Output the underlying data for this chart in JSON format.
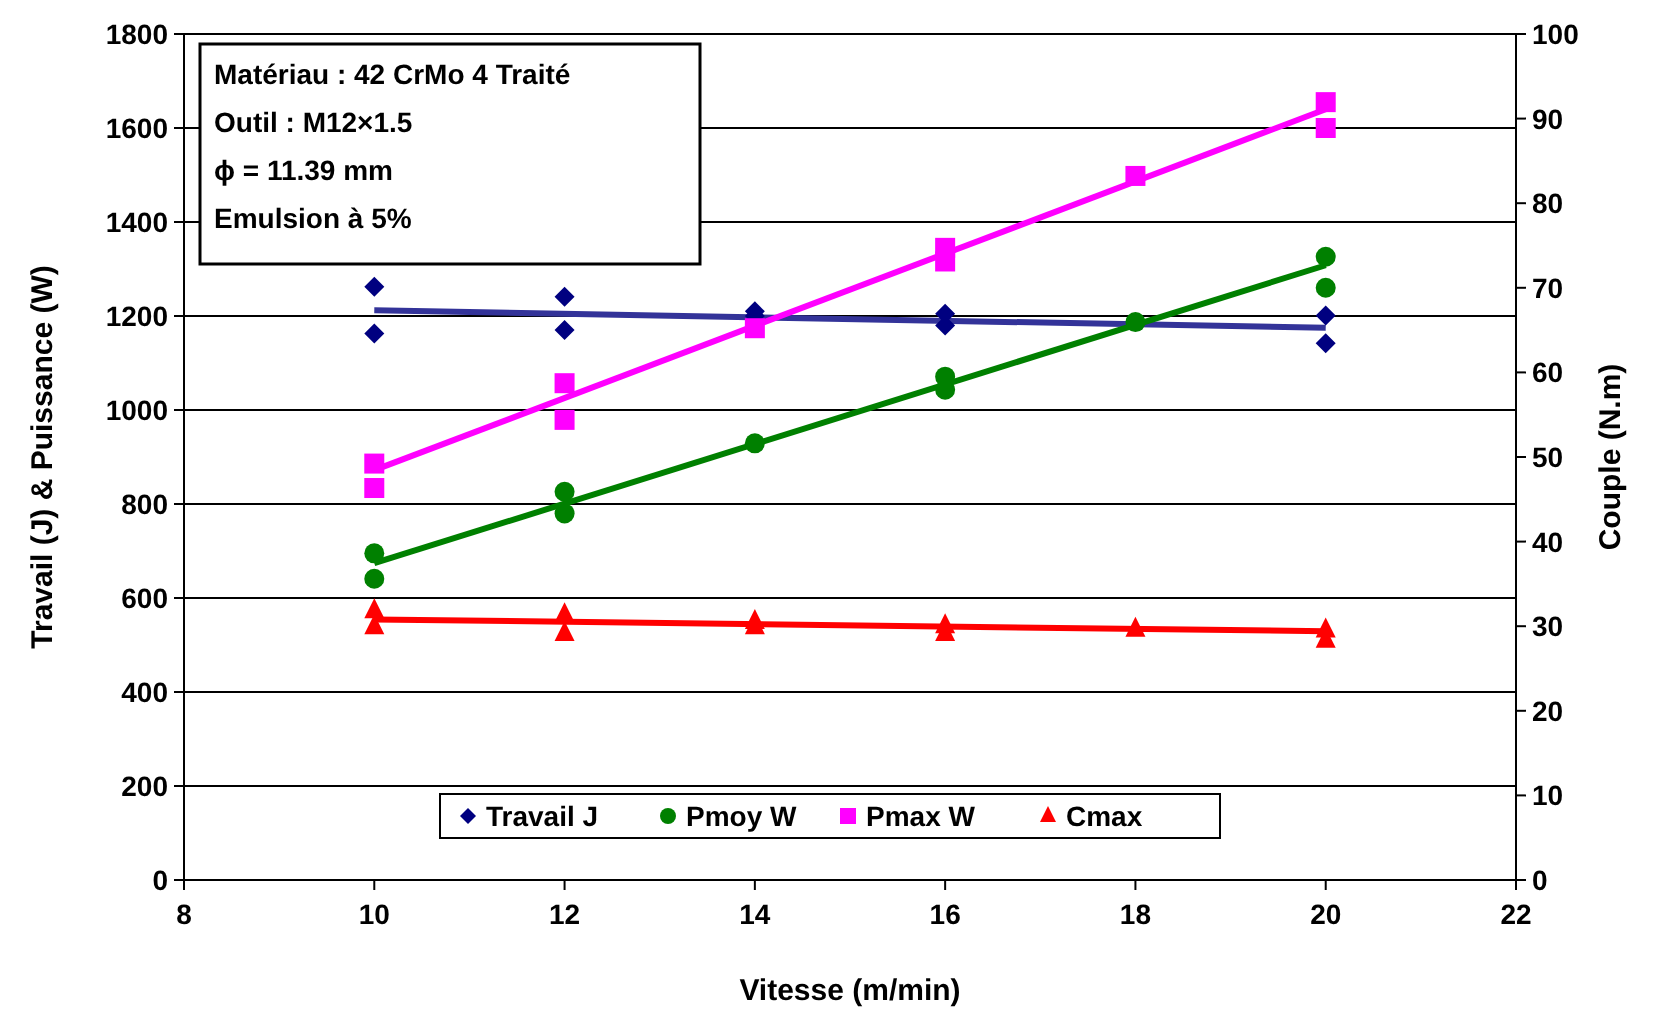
{
  "chart_data": {
    "type": "scatter",
    "xlabel": "Vitesse (m/min)",
    "ylabel": "Travail (J) & Puissance (W)",
    "y2label": "Couple (N.m)",
    "annotations": [
      "Matériau : 42 CrMo 4 Traité",
      "Outil : M12×1.5",
      "ϕ = 11.39 mm",
      "Emulsion à 5%"
    ],
    "xlim": [
      8,
      22
    ],
    "xticks": [
      8,
      10,
      12,
      14,
      16,
      18,
      20,
      22
    ],
    "ylim": [
      0,
      1800
    ],
    "yticks": [
      0,
      200,
      400,
      600,
      800,
      1000,
      1200,
      1400,
      1600,
      1800
    ],
    "y2lim": [
      0,
      100
    ],
    "y2ticks": [
      0,
      10,
      20,
      30,
      40,
      50,
      60,
      70,
      80,
      90,
      100
    ],
    "grid": "y",
    "legend": "bottom",
    "series": [
      {
        "name": "Travail J",
        "marker": "diamond",
        "color": "#000080",
        "x": [
          10,
          10,
          12,
          12,
          14,
          14,
          16,
          16,
          20,
          20
        ],
        "values": [
          1262,
          1163,
          1241,
          1170,
          1210,
          1200,
          1205,
          1180,
          1201,
          1142
        ]
      },
      {
        "name": "Pmoy W",
        "marker": "circle",
        "color": "#008000",
        "x": [
          10,
          10,
          12,
          12,
          14,
          16,
          16,
          18,
          20,
          20
        ],
        "values": [
          695,
          641,
          826,
          780,
          929,
          1071,
          1043,
          1187,
          1326,
          1260
        ]
      },
      {
        "name": "Pmax W",
        "marker": "square",
        "color": "#ff00ff",
        "x": [
          10,
          10,
          12,
          12,
          14,
          16,
          16,
          18,
          20,
          20
        ],
        "values": [
          886,
          834,
          1057,
          979,
          1174,
          1345,
          1316,
          1498,
          1655,
          1600
        ]
      },
      {
        "name": "Cmax",
        "marker": "triangle",
        "color": "#ff0000",
        "axis": "y2",
        "x": [
          10,
          10,
          12,
          12,
          14,
          14,
          16,
          16,
          18,
          20,
          20
        ],
        "values": [
          31.9,
          30.0,
          31.4,
          29.2,
          30.6,
          30.0,
          30.1,
          29.2,
          29.7,
          29.6,
          28.4
        ]
      },
      {
        "type": "line",
        "marker": "none",
        "color": "#333399",
        "x": [
          10,
          20
        ],
        "values": [
          1212,
          1175
        ]
      },
      {
        "type": "line",
        "marker": "none",
        "color": "#008000",
        "x": [
          10,
          20
        ],
        "values": [
          674,
          1308
        ]
      },
      {
        "type": "line",
        "marker": "none",
        "color": "#ff00ff",
        "x": [
          10,
          20
        ],
        "values": [
          872,
          1640
        ]
      },
      {
        "type": "line",
        "marker": "none",
        "color": "#ff0000",
        "axis": "y2",
        "x": [
          10,
          20
        ],
        "values": [
          30.8,
          29.4
        ]
      }
    ]
  }
}
